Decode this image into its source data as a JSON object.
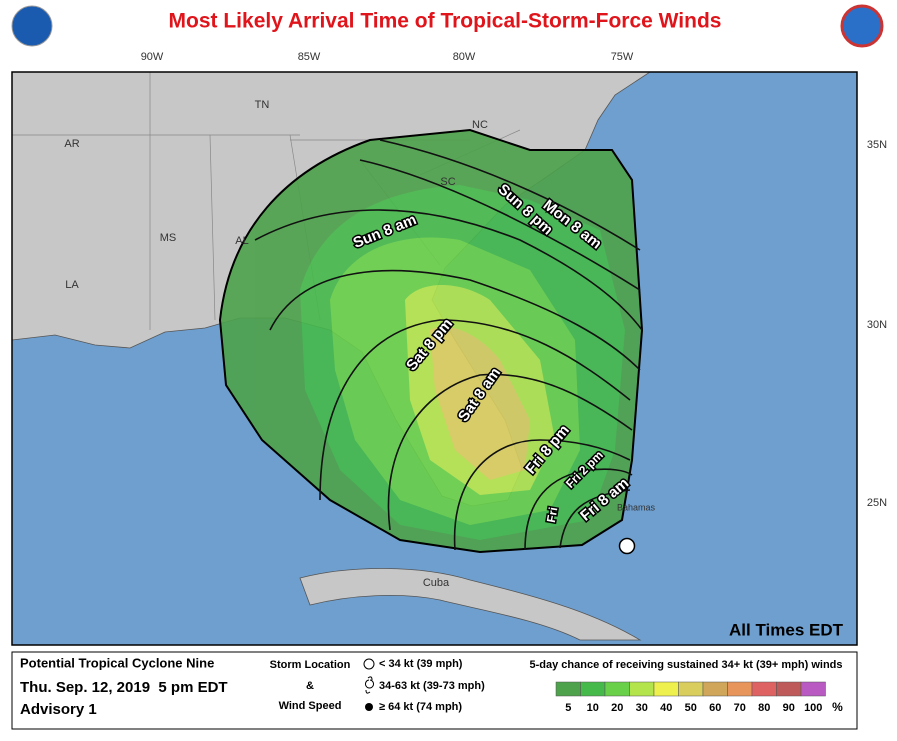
{
  "header": {
    "title": "Most Likely Arrival Time of Tropical-Storm-Force Winds"
  },
  "map": {
    "lon_labels": [
      "90W",
      "85W",
      "80W",
      "75W"
    ],
    "lat_labels": [
      "35N",
      "30N",
      "25N"
    ],
    "place_labels": [
      "TN",
      "NC",
      "AR",
      "SC",
      "MS",
      "AL",
      "LA",
      "Cuba",
      "Bahamas"
    ],
    "contour_labels": [
      "Mon 8 am",
      "Sun 8 pm",
      "Sun 8 am",
      "Sat 8 pm",
      "Sat 8 am",
      "Fri 8 pm",
      "Fri 2 pm",
      "Fri 8 am",
      "Fri"
    ],
    "note": "All Times EDT"
  },
  "legend": {
    "advisory": [
      "Potential Tropical Cyclone Nine",
      "Thu. Sep. 12, 2019  5 pm EDT",
      "Advisory 1"
    ],
    "storm_key": {
      "titles": [
        "Storm Location",
        "&",
        "Wind Speed"
      ],
      "items": [
        "< 34 kt (39 mph)",
        "34-63 kt (39-73 mph)",
        "≥ 64 kt (74 mph)"
      ]
    },
    "probability": {
      "title": "5-day chance of receiving sustained 34+ kt (39+ mph) winds",
      "scale": [
        5,
        10,
        20,
        30,
        40,
        50,
        60,
        70,
        80,
        90,
        100
      ],
      "colors": [
        "#4ea24b",
        "#46b94b",
        "#69d04a",
        "#b3e44c",
        "#eef04e",
        "#d9cd5e",
        "#cfa65a",
        "#e8955c",
        "#df6262",
        "#bf5a5a",
        "#b85ac2"
      ],
      "unit": "%"
    }
  }
}
